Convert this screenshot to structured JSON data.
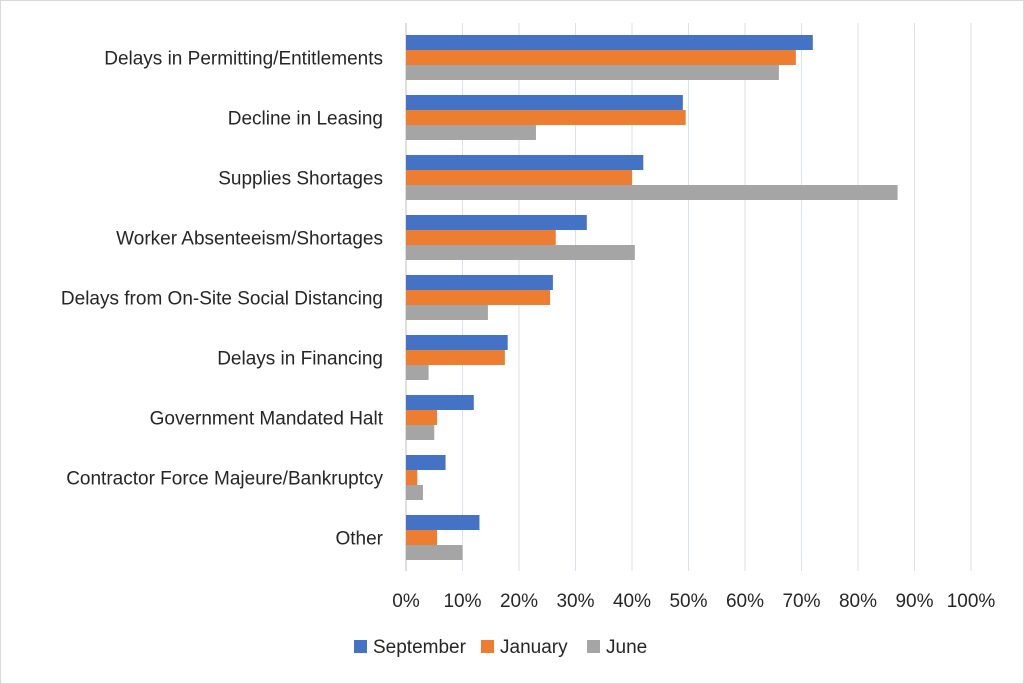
{
  "chart_data": {
    "type": "bar",
    "orientation": "horizontal",
    "categories": [
      "Delays in Permitting/Entitlements",
      "Decline in Leasing",
      "Supplies Shortages",
      "Worker Absenteeism/Shortages",
      "Delays from On-Site Social Distancing",
      "Delays in Financing",
      "Government Mandated Halt",
      "Contractor Force Majeure/Bankruptcy",
      "Other"
    ],
    "series": [
      {
        "name": "September",
        "color": "#4472c4",
        "values": [
          72,
          49,
          42,
          32,
          26,
          18,
          12,
          7,
          13
        ]
      },
      {
        "name": "January",
        "color": "#ed7d31",
        "values": [
          69,
          49.5,
          40,
          26.5,
          25.5,
          17.5,
          5.5,
          2,
          5.5
        ]
      },
      {
        "name": "June",
        "color": "#a5a5a5",
        "values": [
          66,
          23,
          87,
          40.5,
          14.5,
          4,
          5,
          3,
          10
        ]
      }
    ],
    "xlim": [
      0,
      100
    ],
    "xticks": [
      "0%",
      "10%",
      "20%",
      "30%",
      "40%",
      "50%",
      "60%",
      "70%",
      "80%",
      "90%",
      "100%"
    ],
    "grid": true,
    "legend_position": "bottom",
    "title": "",
    "xlabel": "",
    "ylabel": ""
  }
}
